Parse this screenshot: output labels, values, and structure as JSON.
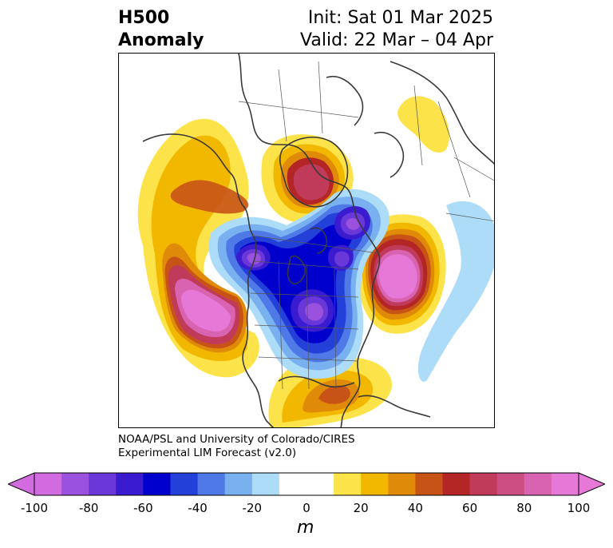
{
  "header": {
    "variable_line1": "H500",
    "variable_line2": "Anomaly",
    "init_text": "Init: Sat 01 Mar 2025",
    "valid_text": "Valid: 22 Mar – 04 Apr"
  },
  "map": {
    "projection": "polar stereographic (North America)",
    "features": [
      "coastlines",
      "country borders",
      "state/province borders"
    ],
    "anomaly_centers": [
      {
        "region": "Northeast Pacific / off US West Coast",
        "sign": "positive",
        "peak_m": 100
      },
      {
        "region": "Greenland / Baffin Island",
        "sign": "positive",
        "peak_m": 60
      },
      {
        "region": "North Atlantic",
        "sign": "positive",
        "peak_m": 100
      },
      {
        "region": "Gulf of Mexico",
        "sign": "positive",
        "peak_m": 40
      },
      {
        "region": "Alaska / Bering Strait",
        "sign": "positive",
        "peak_m": 50
      },
      {
        "region": "Canadian Arctic Archipelago",
        "sign": "negative",
        "peak_m": -90
      },
      {
        "region": "Great Lakes / Hudson Bay",
        "sign": "negative",
        "peak_m": -90
      },
      {
        "region": "Western Canada",
        "sign": "negative",
        "peak_m": -90
      },
      {
        "region": "Central Atlantic",
        "sign": "negative",
        "peak_m": -20
      }
    ]
  },
  "credit": {
    "line1": "NOAA/PSL and University of Colorado/CIRES",
    "line2": "Experimental LIM Forecast (v2.0)"
  },
  "colorbar": {
    "unit": "m",
    "min": -100,
    "max": 100,
    "step": 10,
    "extend": "both",
    "tick_labels": [
      "-100",
      "-80",
      "-60",
      "-40",
      "-20",
      "0",
      "20",
      "40",
      "60",
      "80",
      "100"
    ],
    "colors": [
      "#d36be0",
      "#9a52de",
      "#6a37d8",
      "#3a1bd0",
      "#0000cc",
      "#2340d8",
      "#4e79e6",
      "#78b0f0",
      "#addcf8",
      "#ffffff",
      "#ffffff",
      "#fde34a",
      "#f2b800",
      "#e08a0a",
      "#c85317",
      "#b42525",
      "#c03a5a",
      "#cc4f84",
      "#d863b0",
      "#e679d8"
    ],
    "under_color": "#d36be0",
    "over_color": "#e679d8"
  }
}
